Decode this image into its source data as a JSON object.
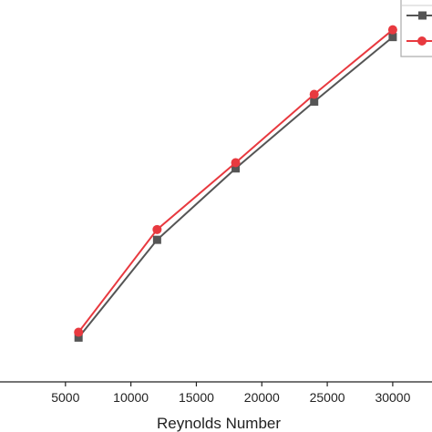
{
  "chart_data": {
    "type": "line",
    "xlabel": "Reynolds Number",
    "ylabel": "",
    "xlim": [
      0,
      33000
    ],
    "ylim": [
      0,
      1
    ],
    "x": [
      6000,
      12000,
      18000,
      24000,
      30000
    ],
    "xticks": [
      5000,
      10000,
      15000,
      20000,
      25000,
      30000
    ],
    "xtick_labels": [
      "5000",
      "10000",
      "15000",
      "20000",
      "25000",
      "30000"
    ],
    "grid": false,
    "legend": "top-right",
    "series": [
      {
        "marker": "square",
        "color": "#555555",
        "values": [
          0.116,
          0.372,
          0.559,
          0.734,
          0.903
        ]
      },
      {
        "marker": "circle",
        "color": "#e8393f",
        "values": [
          0.13,
          0.399,
          0.574,
          0.753,
          0.922
        ]
      }
    ]
  }
}
